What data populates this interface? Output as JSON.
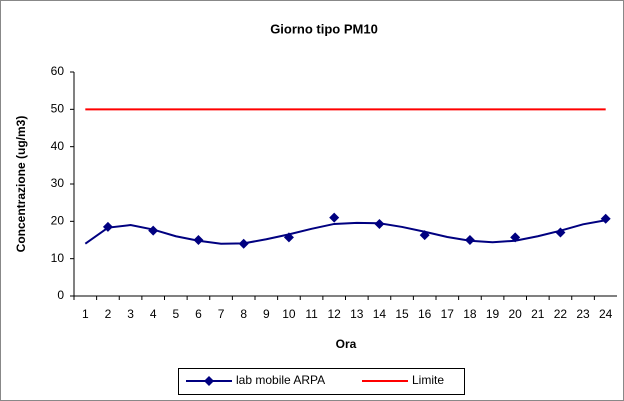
{
  "chart_data": {
    "type": "line",
    "title": "Giorno tipo PM10",
    "x_label": "Ora",
    "y_label": "Concentrazione (ug/m3)",
    "categories": [
      "1",
      "2",
      "3",
      "4",
      "5",
      "6",
      "7",
      "8",
      "9",
      "10",
      "11",
      "12",
      "13",
      "14",
      "15",
      "16",
      "17",
      "18",
      "19",
      "20",
      "21",
      "22",
      "23",
      "24"
    ],
    "ylim": [
      0,
      60
    ],
    "yticks": [
      0,
      10,
      20,
      30,
      40,
      50,
      60
    ],
    "grid": false,
    "legend": "bottom",
    "series": [
      {
        "name": "lab mobile ARPA",
        "color": "#000080",
        "values": [
          null,
          18.5,
          null,
          17.5,
          null,
          15,
          null,
          14,
          null,
          15.7,
          null,
          21,
          null,
          19.3,
          null,
          16.3,
          null,
          15,
          null,
          15.7,
          null,
          17,
          null,
          20.7
        ],
        "trend_values": [
          14,
          18.3,
          19,
          17.8,
          16,
          14.8,
          14,
          14.1,
          15.2,
          16.5,
          18,
          19.3,
          19.6,
          19.5,
          18.5,
          17.2,
          15.8,
          14.8,
          14.4,
          14.8,
          16,
          17.5,
          19.2,
          20.3
        ]
      },
      {
        "name": "Limite",
        "color": "#ff0000",
        "values": [
          50,
          50,
          50,
          50,
          50,
          50,
          50,
          50,
          50,
          50,
          50,
          50,
          50,
          50,
          50,
          50,
          50,
          50,
          50,
          50,
          50,
          50,
          50,
          50
        ]
      }
    ]
  }
}
